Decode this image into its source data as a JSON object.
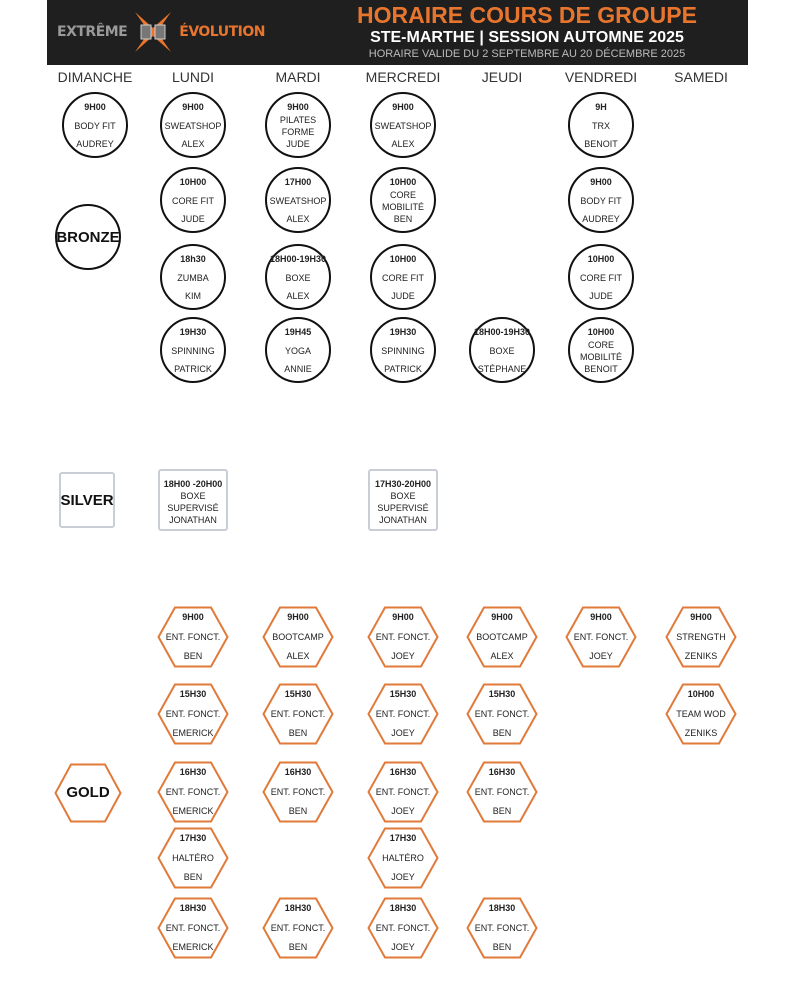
{
  "header": {
    "logo_left": "EXTRÊME",
    "logo_right": "ÉVOLUTION",
    "title": "HORAIRE COURS DE GROUPE",
    "subtitle": "STE-MARTHE | SESSION AUTOMNE 2025",
    "validity": "HORAIRE VALIDE DU 2 SEPTEMBRE AU 20 DÉCEMBRE 2025"
  },
  "colors": {
    "header_bg": "#1f1f1f",
    "accent": "#e8752e",
    "gold_border": "#e07a3a",
    "silver_border": "#c9ced6"
  },
  "days": [
    "DIMANCHE",
    "LUNDI",
    "MARDI",
    "MERCREDI",
    "JEUDI",
    "VENDREDI",
    "SAMEDI"
  ],
  "sections": {
    "bronze": {
      "label": "BRONZE",
      "shape": "circle",
      "classes": [
        {
          "day": 0,
          "row": 0,
          "lines": [
            "9H00",
            "BODY FIT",
            "AUDREY"
          ]
        },
        {
          "day": 1,
          "row": 0,
          "lines": [
            "9H00",
            "SWEATSHOP",
            "ALEX"
          ]
        },
        {
          "day": 1,
          "row": 1,
          "lines": [
            "10H00",
            "CORE FIT",
            "JUDE"
          ]
        },
        {
          "day": 1,
          "row": 2,
          "lines": [
            "18h30",
            "ZUMBA",
            "KIM"
          ]
        },
        {
          "day": 1,
          "row": 3,
          "lines": [
            "19H30",
            "SPINNING",
            "PATRICK"
          ]
        },
        {
          "day": 2,
          "row": 0,
          "lines": [
            "9H00",
            "PILATES FORME",
            "JUDE"
          ]
        },
        {
          "day": 2,
          "row": 1,
          "lines": [
            "17H00",
            "SWEATSHOP",
            "ALEX"
          ]
        },
        {
          "day": 2,
          "row": 2,
          "lines": [
            "18H00-19H30",
            "BOXE",
            "ALEX"
          ]
        },
        {
          "day": 2,
          "row": 3,
          "lines": [
            "19H45",
            "YOGA",
            "ANNIE"
          ]
        },
        {
          "day": 3,
          "row": 0,
          "lines": [
            "9H00",
            "SWEATSHOP",
            "ALEX"
          ]
        },
        {
          "day": 3,
          "row": 1,
          "lines": [
            "10H00",
            "CORE MOBILITÉ",
            "BEN"
          ]
        },
        {
          "day": 3,
          "row": 2,
          "lines": [
            "10H00",
            "CORE FIT",
            "JUDE"
          ]
        },
        {
          "day": 3,
          "row": 3,
          "lines": [
            "19H30",
            "SPINNING",
            "PATRICK"
          ]
        },
        {
          "day": 4,
          "row": 3,
          "lines": [
            "18H00-19H30",
            "BOXE",
            "STÉPHANE"
          ]
        },
        {
          "day": 5,
          "row": 0,
          "lines": [
            "9H",
            "TRX",
            "BENOIT"
          ]
        },
        {
          "day": 5,
          "row": 1,
          "lines": [
            "9H00",
            "BODY FIT",
            "AUDREY"
          ]
        },
        {
          "day": 5,
          "row": 2,
          "lines": [
            "10H00",
            "CORE FIT",
            "JUDE"
          ]
        },
        {
          "day": 5,
          "row": 3,
          "lines": [
            "10H00",
            "CORE MOBILITÉ",
            "BENOIT"
          ]
        }
      ]
    },
    "silver": {
      "label": "SILVER",
      "shape": "box",
      "classes": [
        {
          "day": 1,
          "row": 0,
          "lines": [
            "18H00 -20H00",
            "BOXE",
            "SUPERVISÉ",
            "JONATHAN"
          ]
        },
        {
          "day": 3,
          "row": 0,
          "lines": [
            "17H30-20H00",
            "BOXE",
            "SUPERVISÉ",
            "JONATHAN"
          ]
        }
      ]
    },
    "gold": {
      "label": "GOLD",
      "shape": "hex",
      "classes": [
        {
          "day": 1,
          "row": 0,
          "lines": [
            "9H00",
            "ENT. FONCT.",
            "BEN"
          ]
        },
        {
          "day": 1,
          "row": 1,
          "lines": [
            "15H30",
            "ENT. FONCT.",
            "EMERICK"
          ]
        },
        {
          "day": 1,
          "row": 2,
          "lines": [
            "16H30",
            "ENT. FONCT.",
            "EMERICK"
          ]
        },
        {
          "day": 1,
          "row": 3,
          "lines": [
            "17H30",
            "HALTÉRO",
            "BEN"
          ]
        },
        {
          "day": 1,
          "row": 4,
          "lines": [
            "18H30",
            "ENT. FONCT.",
            "EMERICK"
          ]
        },
        {
          "day": 2,
          "row": 0,
          "lines": [
            "9H00",
            "BOOTCAMP",
            "ALEX"
          ]
        },
        {
          "day": 2,
          "row": 1,
          "lines": [
            "15H30",
            "ENT. FONCT.",
            "BEN"
          ]
        },
        {
          "day": 2,
          "row": 2,
          "lines": [
            "16H30",
            "ENT. FONCT.",
            "BEN"
          ]
        },
        {
          "day": 2,
          "row": 4,
          "lines": [
            "18H30",
            "ENT. FONCT.",
            "BEN"
          ]
        },
        {
          "day": 3,
          "row": 0,
          "lines": [
            "9H00",
            "ENT. FONCT.",
            "JOEY"
          ]
        },
        {
          "day": 3,
          "row": 1,
          "lines": [
            "15H30",
            "ENT. FONCT.",
            "JOEY"
          ]
        },
        {
          "day": 3,
          "row": 2,
          "lines": [
            "16H30",
            "ENT. FONCT.",
            "JOEY"
          ]
        },
        {
          "day": 3,
          "row": 3,
          "lines": [
            "17H30",
            "HALTÉRO",
            "JOEY"
          ]
        },
        {
          "day": 3,
          "row": 4,
          "lines": [
            "18H30",
            "ENT. FONCT.",
            "JOEY"
          ]
        },
        {
          "day": 4,
          "row": 0,
          "lines": [
            "9H00",
            "BOOTCAMP",
            "ALEX"
          ]
        },
        {
          "day": 4,
          "row": 1,
          "lines": [
            "15H30",
            "ENT. FONCT.",
            "BEN"
          ]
        },
        {
          "day": 4,
          "row": 2,
          "lines": [
            "16H30",
            "ENT. FONCT.",
            "BEN"
          ]
        },
        {
          "day": 4,
          "row": 4,
          "lines": [
            "18H30",
            "ENT. FONCT.",
            "BEN"
          ]
        },
        {
          "day": 5,
          "row": 0,
          "lines": [
            "9H00",
            "ENT. FONCT.",
            "JOEY"
          ]
        },
        {
          "day": 6,
          "row": 0,
          "lines": [
            "9H00",
            "STRENGTH",
            "ZENIKS"
          ]
        },
        {
          "day": 6,
          "row": 1,
          "lines": [
            "10H00",
            "TEAM WOD",
            "ZENIKS"
          ]
        }
      ]
    }
  }
}
